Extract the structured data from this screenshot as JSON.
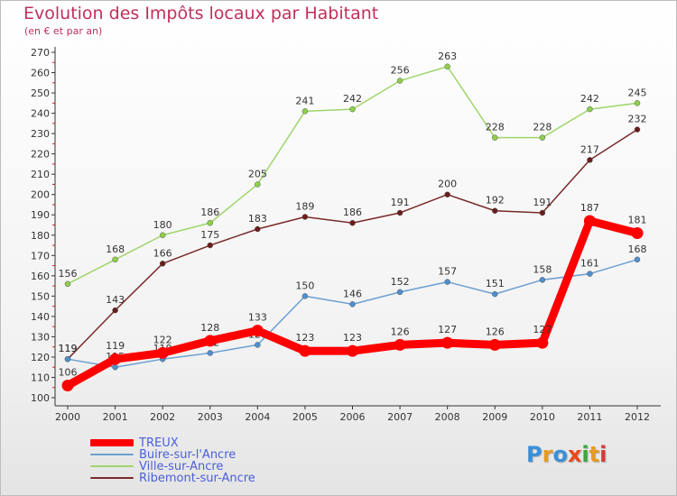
{
  "header": {
    "title": "Evolution des Impôts locaux par Habitant",
    "subtitle": "(en € et par an)"
  },
  "logo": {
    "text": "Proxiti",
    "colors": [
      "#3a8fd8",
      "#e89a20",
      "#3a8fd8",
      "#e84a20",
      "#3aa840",
      "#e89a20",
      "#d83a3a"
    ]
  },
  "chart_data": {
    "type": "line",
    "title": "Evolution des Impôts locaux par Habitant",
    "subtitle": "(en € et par an)",
    "xlabel": "",
    "ylabel": "",
    "x": [
      "2000",
      "2001",
      "2002",
      "2003",
      "2004",
      "2005",
      "2006",
      "2007",
      "2008",
      "2009",
      "2010",
      "2011",
      "2012"
    ],
    "ylim": [
      100,
      270
    ],
    "yticks": [
      100,
      110,
      120,
      130,
      140,
      150,
      160,
      170,
      180,
      190,
      200,
      210,
      220,
      230,
      240,
      250,
      260,
      270
    ],
    "grid": false,
    "legend_position": "bottom-left",
    "series": [
      {
        "name": "TREUX",
        "color": "#ff0000",
        "values": [
          106,
          119,
          122,
          128,
          133,
          123,
          123,
          126,
          127,
          126,
          127,
          187,
          181
        ]
      },
      {
        "name": "Buire-sur-l'Ancre",
        "color": "#6b9fd0",
        "values": [
          119,
          115,
          119,
          122,
          126,
          150,
          146,
          152,
          157,
          151,
          158,
          161,
          168
        ]
      },
      {
        "name": "Ville-sur-Ancre",
        "color": "#9ed66a",
        "values": [
          156,
          168,
          180,
          186,
          205,
          241,
          242,
          256,
          263,
          228,
          228,
          242,
          245
        ]
      },
      {
        "name": "Ribemont-sur-Ancre",
        "color": "#7a2a2a",
        "values": [
          119,
          143,
          166,
          175,
          183,
          189,
          186,
          191,
          200,
          192,
          191,
          217,
          232
        ]
      }
    ]
  }
}
